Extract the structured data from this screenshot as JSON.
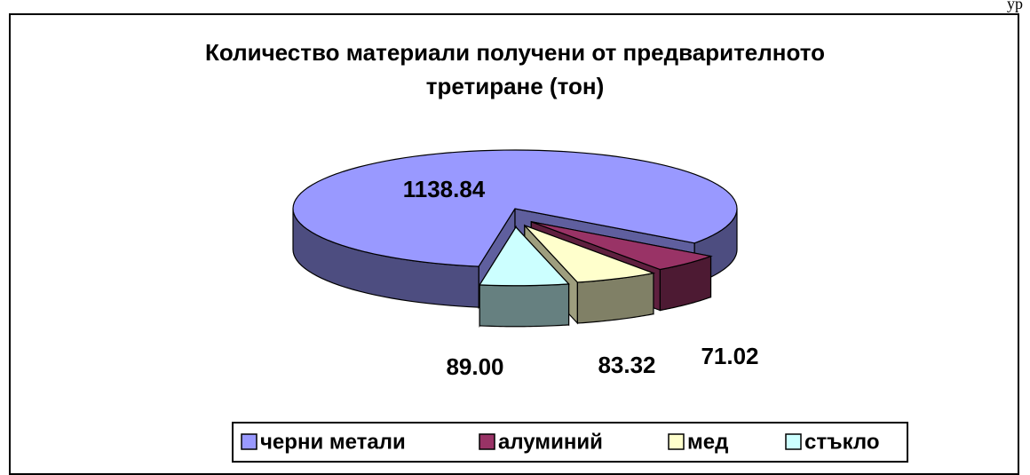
{
  "page_text": "ур",
  "chart_data": {
    "type": "pie",
    "title": "Количество материали получени от предварителното третиране (тон)",
    "categories": [
      "черни метали",
      "алуминий",
      "мед",
      "стъкло"
    ],
    "values": [
      1138.84,
      71.02,
      83.32,
      89.0
    ],
    "value_labels": [
      "1138.84",
      "71.02",
      "83.32",
      "89.00"
    ],
    "colors": [
      "#9999ff",
      "#993366",
      "#ffffcc",
      "#ccffff"
    ],
    "legend": "bottom"
  }
}
